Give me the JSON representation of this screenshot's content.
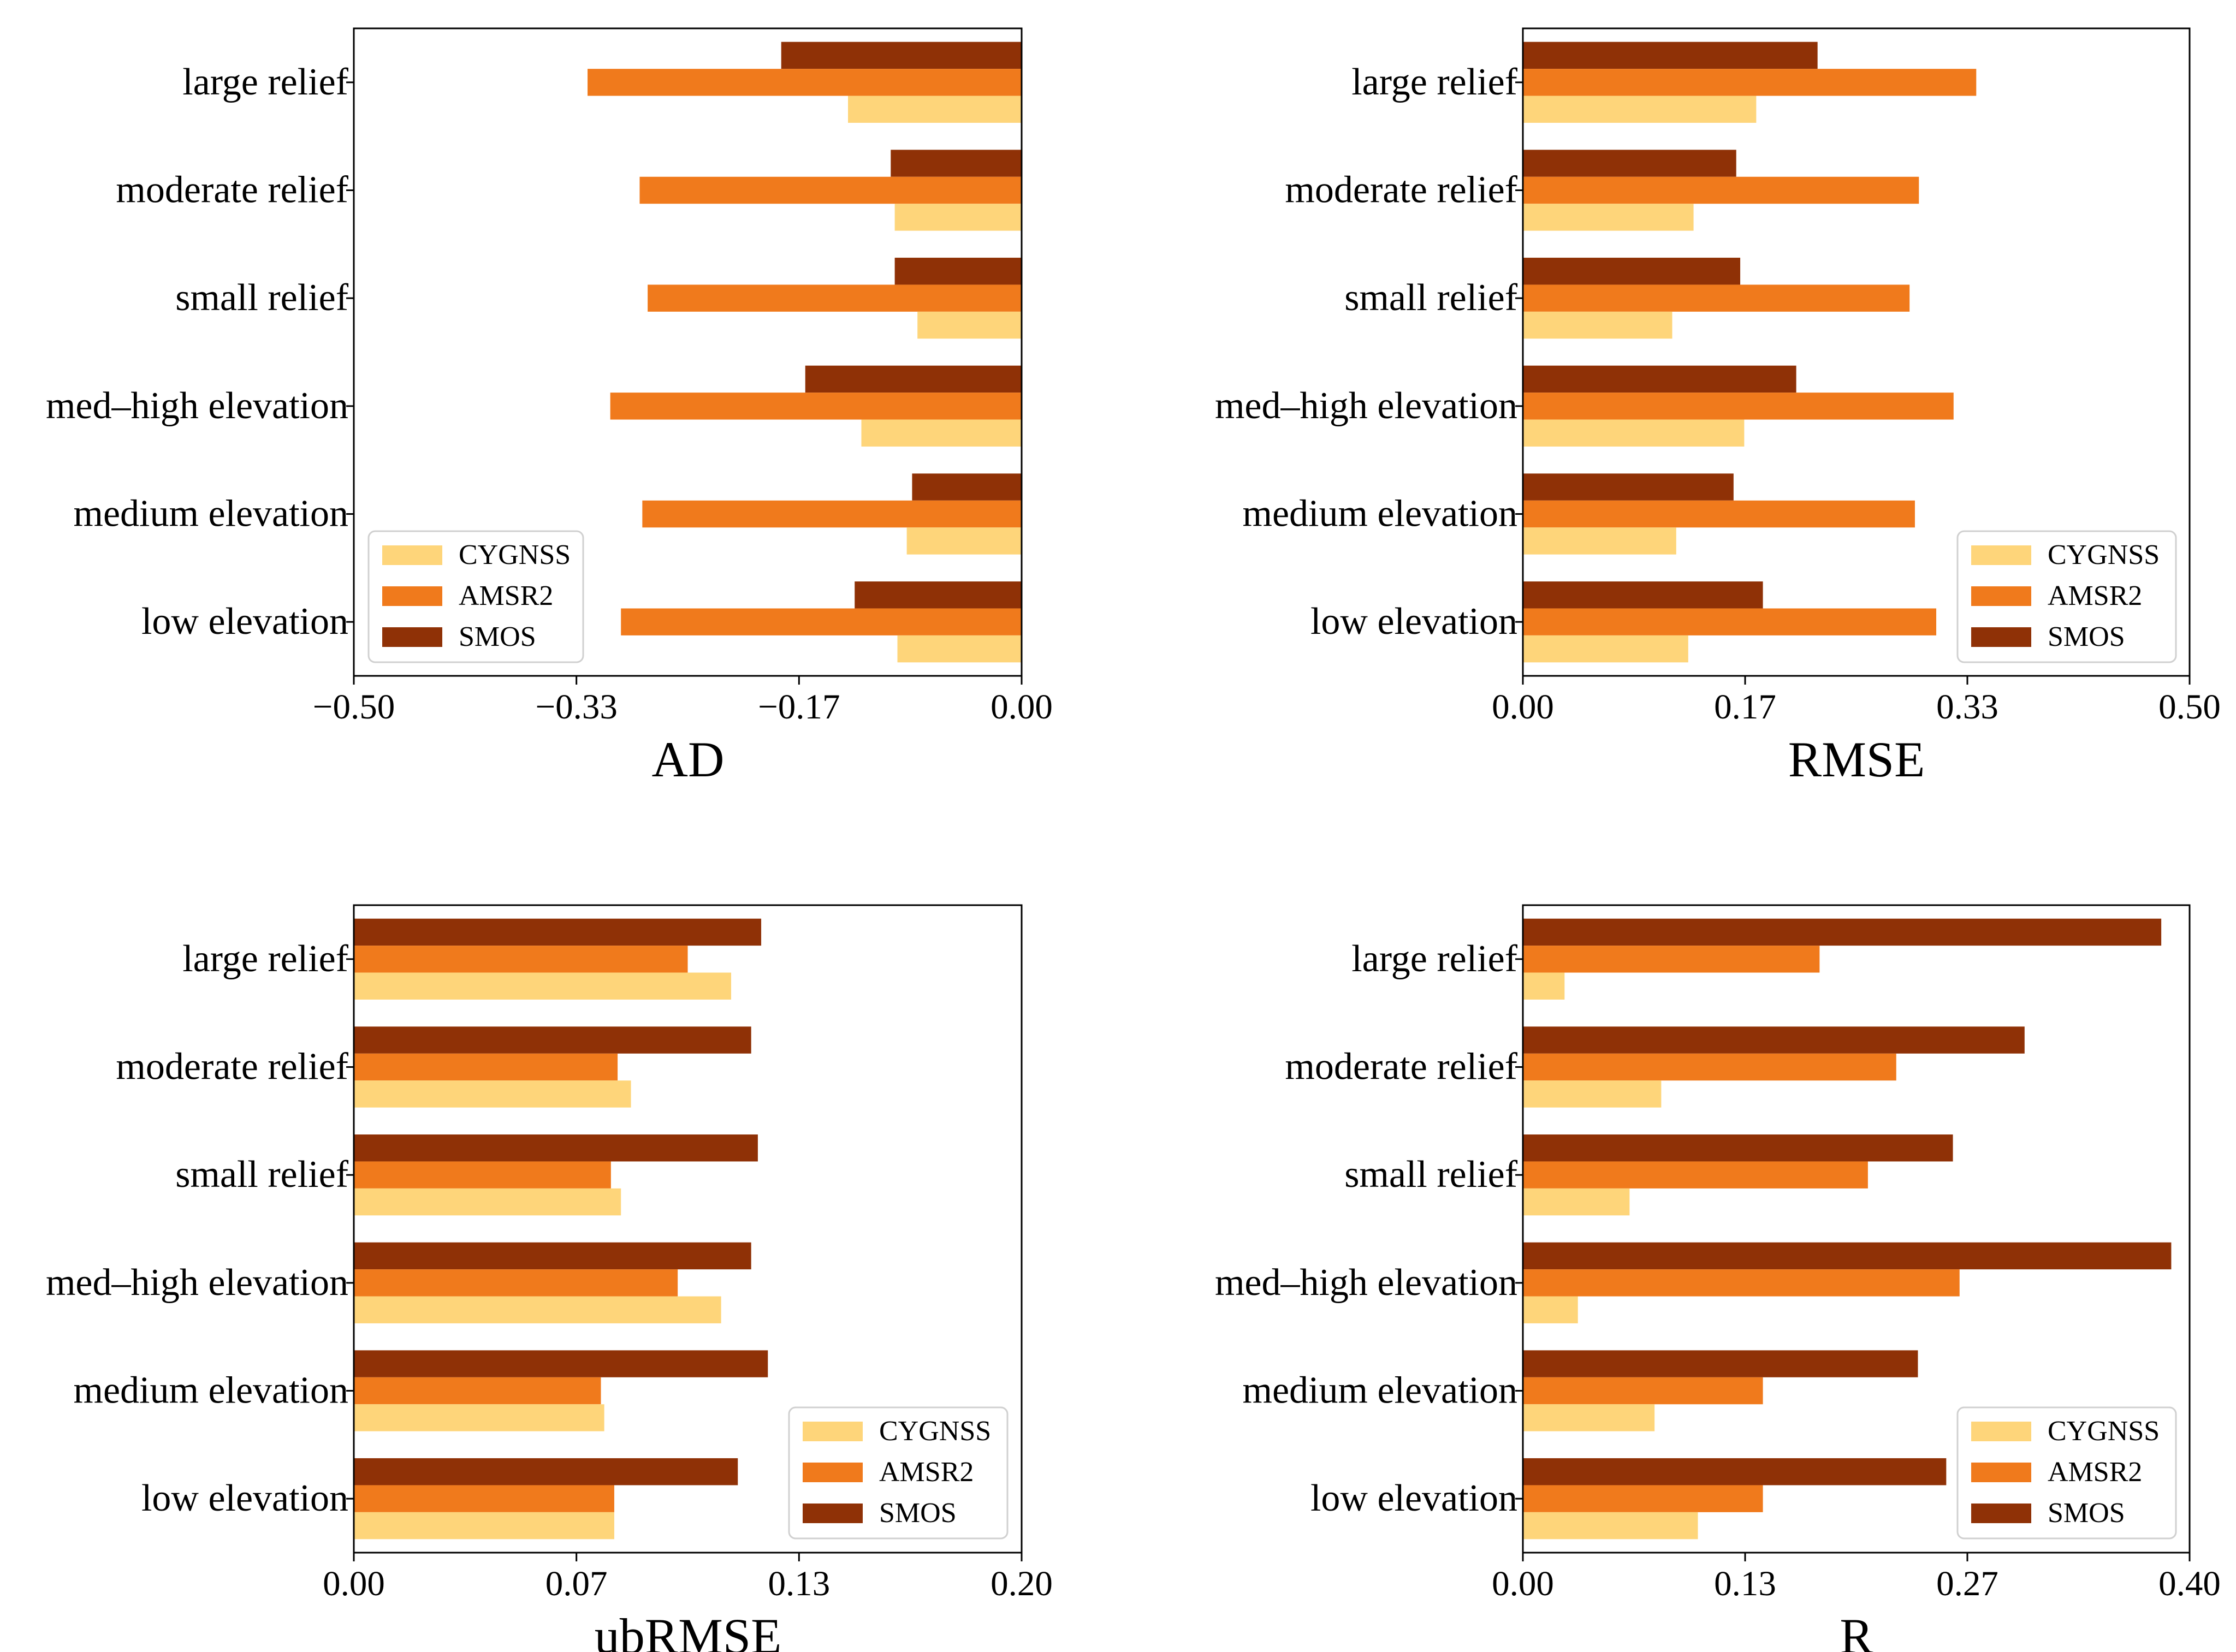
{
  "colors": {
    "CYGNSS": "#fed57a",
    "AMSR2": "#f07a1c",
    "SMOS": "#8f3106"
  },
  "chart_data": [
    {
      "type": "bar",
      "orientation": "horizontal",
      "xlabel": "AD",
      "xlim": [
        -0.5,
        0.0
      ],
      "xticks": [
        "−0.50",
        "−0.33",
        "−0.17",
        "0.00"
      ],
      "categories": [
        "large relief",
        "moderate relief",
        "small relief",
        "med–high elevation",
        "medium elevation",
        "low elevation"
      ],
      "series": [
        {
          "name": "CYGNSS",
          "values": [
            -0.13,
            -0.095,
            -0.078,
            -0.12,
            -0.086,
            -0.093
          ]
        },
        {
          "name": "AMSR2",
          "values": [
            -0.325,
            -0.286,
            -0.28,
            -0.308,
            -0.284,
            -0.3
          ]
        },
        {
          "name": "SMOS",
          "values": [
            -0.18,
            -0.098,
            -0.095,
            -0.162,
            -0.082,
            -0.125
          ]
        }
      ],
      "legend_position": "lower-left"
    },
    {
      "type": "bar",
      "orientation": "horizontal",
      "xlabel": "RMSE",
      "xlim": [
        0.0,
        0.5
      ],
      "xticks": [
        "0.00",
        "0.17",
        "0.33",
        "0.50"
      ],
      "categories": [
        "large relief",
        "moderate relief",
        "small relief",
        "med–high elevation",
        "medium elevation",
        "low elevation"
      ],
      "series": [
        {
          "name": "CYGNSS",
          "values": [
            0.175,
            0.128,
            0.112,
            0.166,
            0.115,
            0.124
          ]
        },
        {
          "name": "AMSR2",
          "values": [
            0.34,
            0.297,
            0.29,
            0.323,
            0.294,
            0.31
          ]
        },
        {
          "name": "SMOS",
          "values": [
            0.221,
            0.16,
            0.163,
            0.205,
            0.158,
            0.18
          ]
        }
      ],
      "legend_position": "lower-right"
    },
    {
      "type": "bar",
      "orientation": "horizontal",
      "xlabel": "ubRMSE",
      "xlim": [
        0.0,
        0.2
      ],
      "xticks": [
        "0.00",
        "0.07",
        "0.13",
        "0.20"
      ],
      "categories": [
        "large relief",
        "moderate relief",
        "small relief",
        "med–high elevation",
        "medium elevation",
        "low elevation"
      ],
      "series": [
        {
          "name": "CYGNSS",
          "values": [
            0.113,
            0.083,
            0.08,
            0.11,
            0.075,
            0.078
          ]
        },
        {
          "name": "AMSR2",
          "values": [
            0.1,
            0.079,
            0.077,
            0.097,
            0.074,
            0.078
          ]
        },
        {
          "name": "SMOS",
          "values": [
            0.122,
            0.119,
            0.121,
            0.119,
            0.124,
            0.115
          ]
        }
      ],
      "legend_position": "lower-right"
    },
    {
      "type": "bar",
      "orientation": "horizontal",
      "xlabel": "R",
      "xlim": [
        0.0,
        0.4
      ],
      "xticks": [
        "0.00",
        "0.13",
        "0.27",
        "0.40"
      ],
      "categories": [
        "large relief",
        "moderate relief",
        "small relief",
        "med–high elevation",
        "medium elevation",
        "low elevation"
      ],
      "series": [
        {
          "name": "CYGNSS",
          "values": [
            0.025,
            0.083,
            0.064,
            0.033,
            0.079,
            0.105
          ]
        },
        {
          "name": "AMSR2",
          "values": [
            0.178,
            0.224,
            0.207,
            0.262,
            0.144,
            0.144
          ]
        },
        {
          "name": "SMOS",
          "values": [
            0.383,
            0.301,
            0.258,
            0.389,
            0.237,
            0.254
          ]
        }
      ],
      "legend_position": "lower-right"
    }
  ]
}
